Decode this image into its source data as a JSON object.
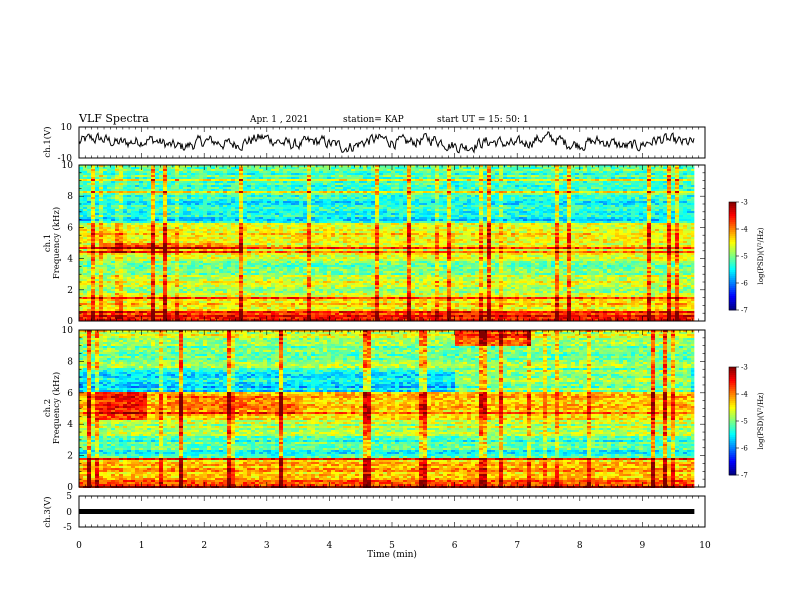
{
  "header": {
    "title": "VLF Spectra",
    "date": "Apr. 1 , 2021",
    "station": "station= KAP",
    "start": "start UT = 15: 50: 1"
  },
  "chart_data": [
    {
      "type": "line",
      "panel": "ch1_waveform",
      "ylabel": "ch.1(V)",
      "ylim": [
        -10,
        10
      ],
      "yticks": [
        "10",
        "-10"
      ],
      "xlim": [
        0,
        10
      ],
      "data_xlim": [
        0,
        9.83
      ],
      "color": "#000000",
      "noise_amplitude_v": 4.5
    },
    {
      "type": "heatmap",
      "panel": "ch1_spectrogram",
      "ylabel_channel": "ch.1",
      "ylabel": "Frequency (kHz)",
      "ylim": [
        0,
        10
      ],
      "yticks": [
        "0",
        "2",
        "4",
        "6",
        "8",
        "10"
      ],
      "xlim": [
        0,
        10
      ],
      "data_xlim": [
        0,
        9.83
      ],
      "colorbar": {
        "label": "log(PSD)(V²/Hz)",
        "range": [
          -7,
          -3
        ],
        "ticks": [
          "-3",
          "-4",
          "-5",
          "-6",
          "-7"
        ]
      },
      "bands": [
        {
          "f": [
            0,
            0.7
          ],
          "v": -3.6
        },
        {
          "f": [
            0.7,
            1.8
          ],
          "v": -4.4
        },
        {
          "f": [
            1.8,
            3.0
          ],
          "v": -4.7
        },
        {
          "f": [
            3.0,
            3.8
          ],
          "v": -5.0
        },
        {
          "f": [
            3.8,
            4.9
          ],
          "v": -4.5
        },
        {
          "f": [
            4.9,
            6.3
          ],
          "v": -4.7
        },
        {
          "f": [
            6.3,
            8.0
          ],
          "v": -5.5
        },
        {
          "f": [
            8.0,
            10.0
          ],
          "v": -5.2
        }
      ],
      "features": [
        {
          "t": [
            0.4,
            1.5
          ],
          "f": [
            4.4,
            5.0
          ],
          "v": -3.9
        },
        {
          "t": [
            1.5,
            2.6
          ],
          "f": [
            4.4,
            5.0
          ],
          "v": -4.1
        }
      ]
    },
    {
      "type": "heatmap",
      "panel": "ch2_spectrogram",
      "ylabel_channel": "ch.2",
      "ylabel": "Frequency (kHz)",
      "ylim": [
        0,
        10
      ],
      "yticks": [
        "0",
        "2",
        "4",
        "6",
        "8",
        "10"
      ],
      "xlim": [
        0,
        10
      ],
      "data_xlim": [
        0,
        9.83
      ],
      "colorbar": {
        "label": "log(PSD)(V²/Hz)",
        "range": [
          -7,
          -3
        ],
        "ticks": [
          "-3",
          "-4",
          "-5",
          "-6",
          "-7"
        ]
      },
      "bands": [
        {
          "f": [
            0,
            0.5
          ],
          "v": -3.6
        },
        {
          "f": [
            0.5,
            1.8
          ],
          "v": -4.3
        },
        {
          "f": [
            1.8,
            3.3
          ],
          "v": -5.3
        },
        {
          "f": [
            3.3,
            4.3
          ],
          "v": -4.8
        },
        {
          "f": [
            4.3,
            6.0
          ],
          "v": -4.2
        },
        {
          "f": [
            6.0,
            7.5
          ],
          "v": -5.6
        },
        {
          "f": [
            7.5,
            10.0
          ],
          "v": -5.0
        }
      ],
      "features": [
        {
          "t": [
            0.3,
            1.1
          ],
          "f": [
            4.3,
            6.0
          ],
          "v": -3.5
        },
        {
          "t": [
            1.4,
            3.5
          ],
          "f": [
            4.5,
            5.8
          ],
          "v": -3.9
        },
        {
          "t": [
            6.0,
            7.2
          ],
          "f": [
            9.0,
            10.0
          ],
          "v": -4.0
        },
        {
          "t": [
            6.0,
            9.8
          ],
          "f": [
            6.0,
            7.5
          ],
          "v": -5.0
        }
      ]
    },
    {
      "type": "line",
      "panel": "ch3_waveform",
      "ylabel": "ch.3(V)",
      "ylim": [
        -5,
        5
      ],
      "yticks": [
        "5",
        "0",
        "-5"
      ],
      "xlim": [
        0,
        10
      ],
      "data_xlim": [
        0,
        9.83
      ],
      "xlabel": "Time (min)",
      "xticks": [
        "0",
        "1",
        "2",
        "3",
        "4",
        "5",
        "6",
        "7",
        "8",
        "9",
        "10"
      ],
      "level_v": 0,
      "color": "#000000"
    }
  ]
}
